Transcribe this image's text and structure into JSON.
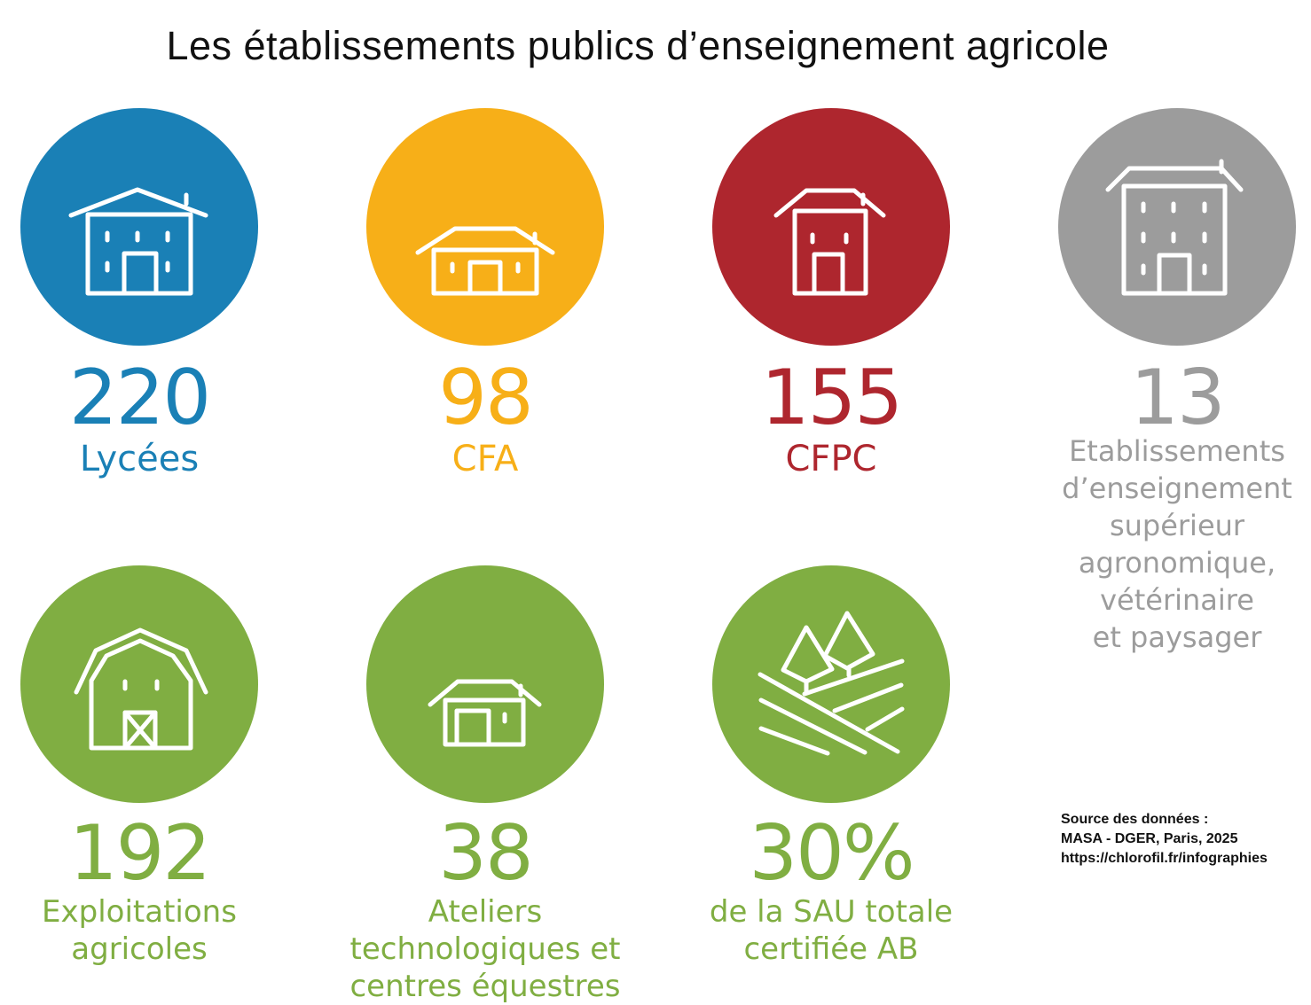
{
  "title": "Les établissements publics d’enseignement agricole",
  "colors": {
    "blue": "#1a80b6",
    "yellow": "#f7af18",
    "red": "#ae262e",
    "gray": "#9c9c9c",
    "green": "#80ae42"
  },
  "items": [
    {
      "number": "220",
      "label": "Lycées",
      "icon": "school-building-icon"
    },
    {
      "number": "98",
      "label": "CFA",
      "icon": "low-building-icon"
    },
    {
      "number": "155",
      "label": "CFPC",
      "icon": "small-building-icon"
    },
    {
      "number": "13",
      "label": "Etablissements\nd’enseignement\nsupérieur\nagronomique,\nvétérinaire\net paysager",
      "icon": "tall-building-icon"
    },
    {
      "number": "192",
      "label": "Exploitations\nagricoles",
      "icon": "barn-icon"
    },
    {
      "number": "38",
      "label": "Ateliers\ntechnologiques et\ncentres équestres",
      "icon": "workshop-icon"
    },
    {
      "number": "30%",
      "label": "de la SAU totale\ncertifiée AB",
      "icon": "fields-trees-icon"
    }
  ],
  "source": {
    "line1": "Source des données :",
    "line2": "MASA - DGER, Paris, 2025",
    "line3": "https://chlorofil.fr/infographies"
  }
}
